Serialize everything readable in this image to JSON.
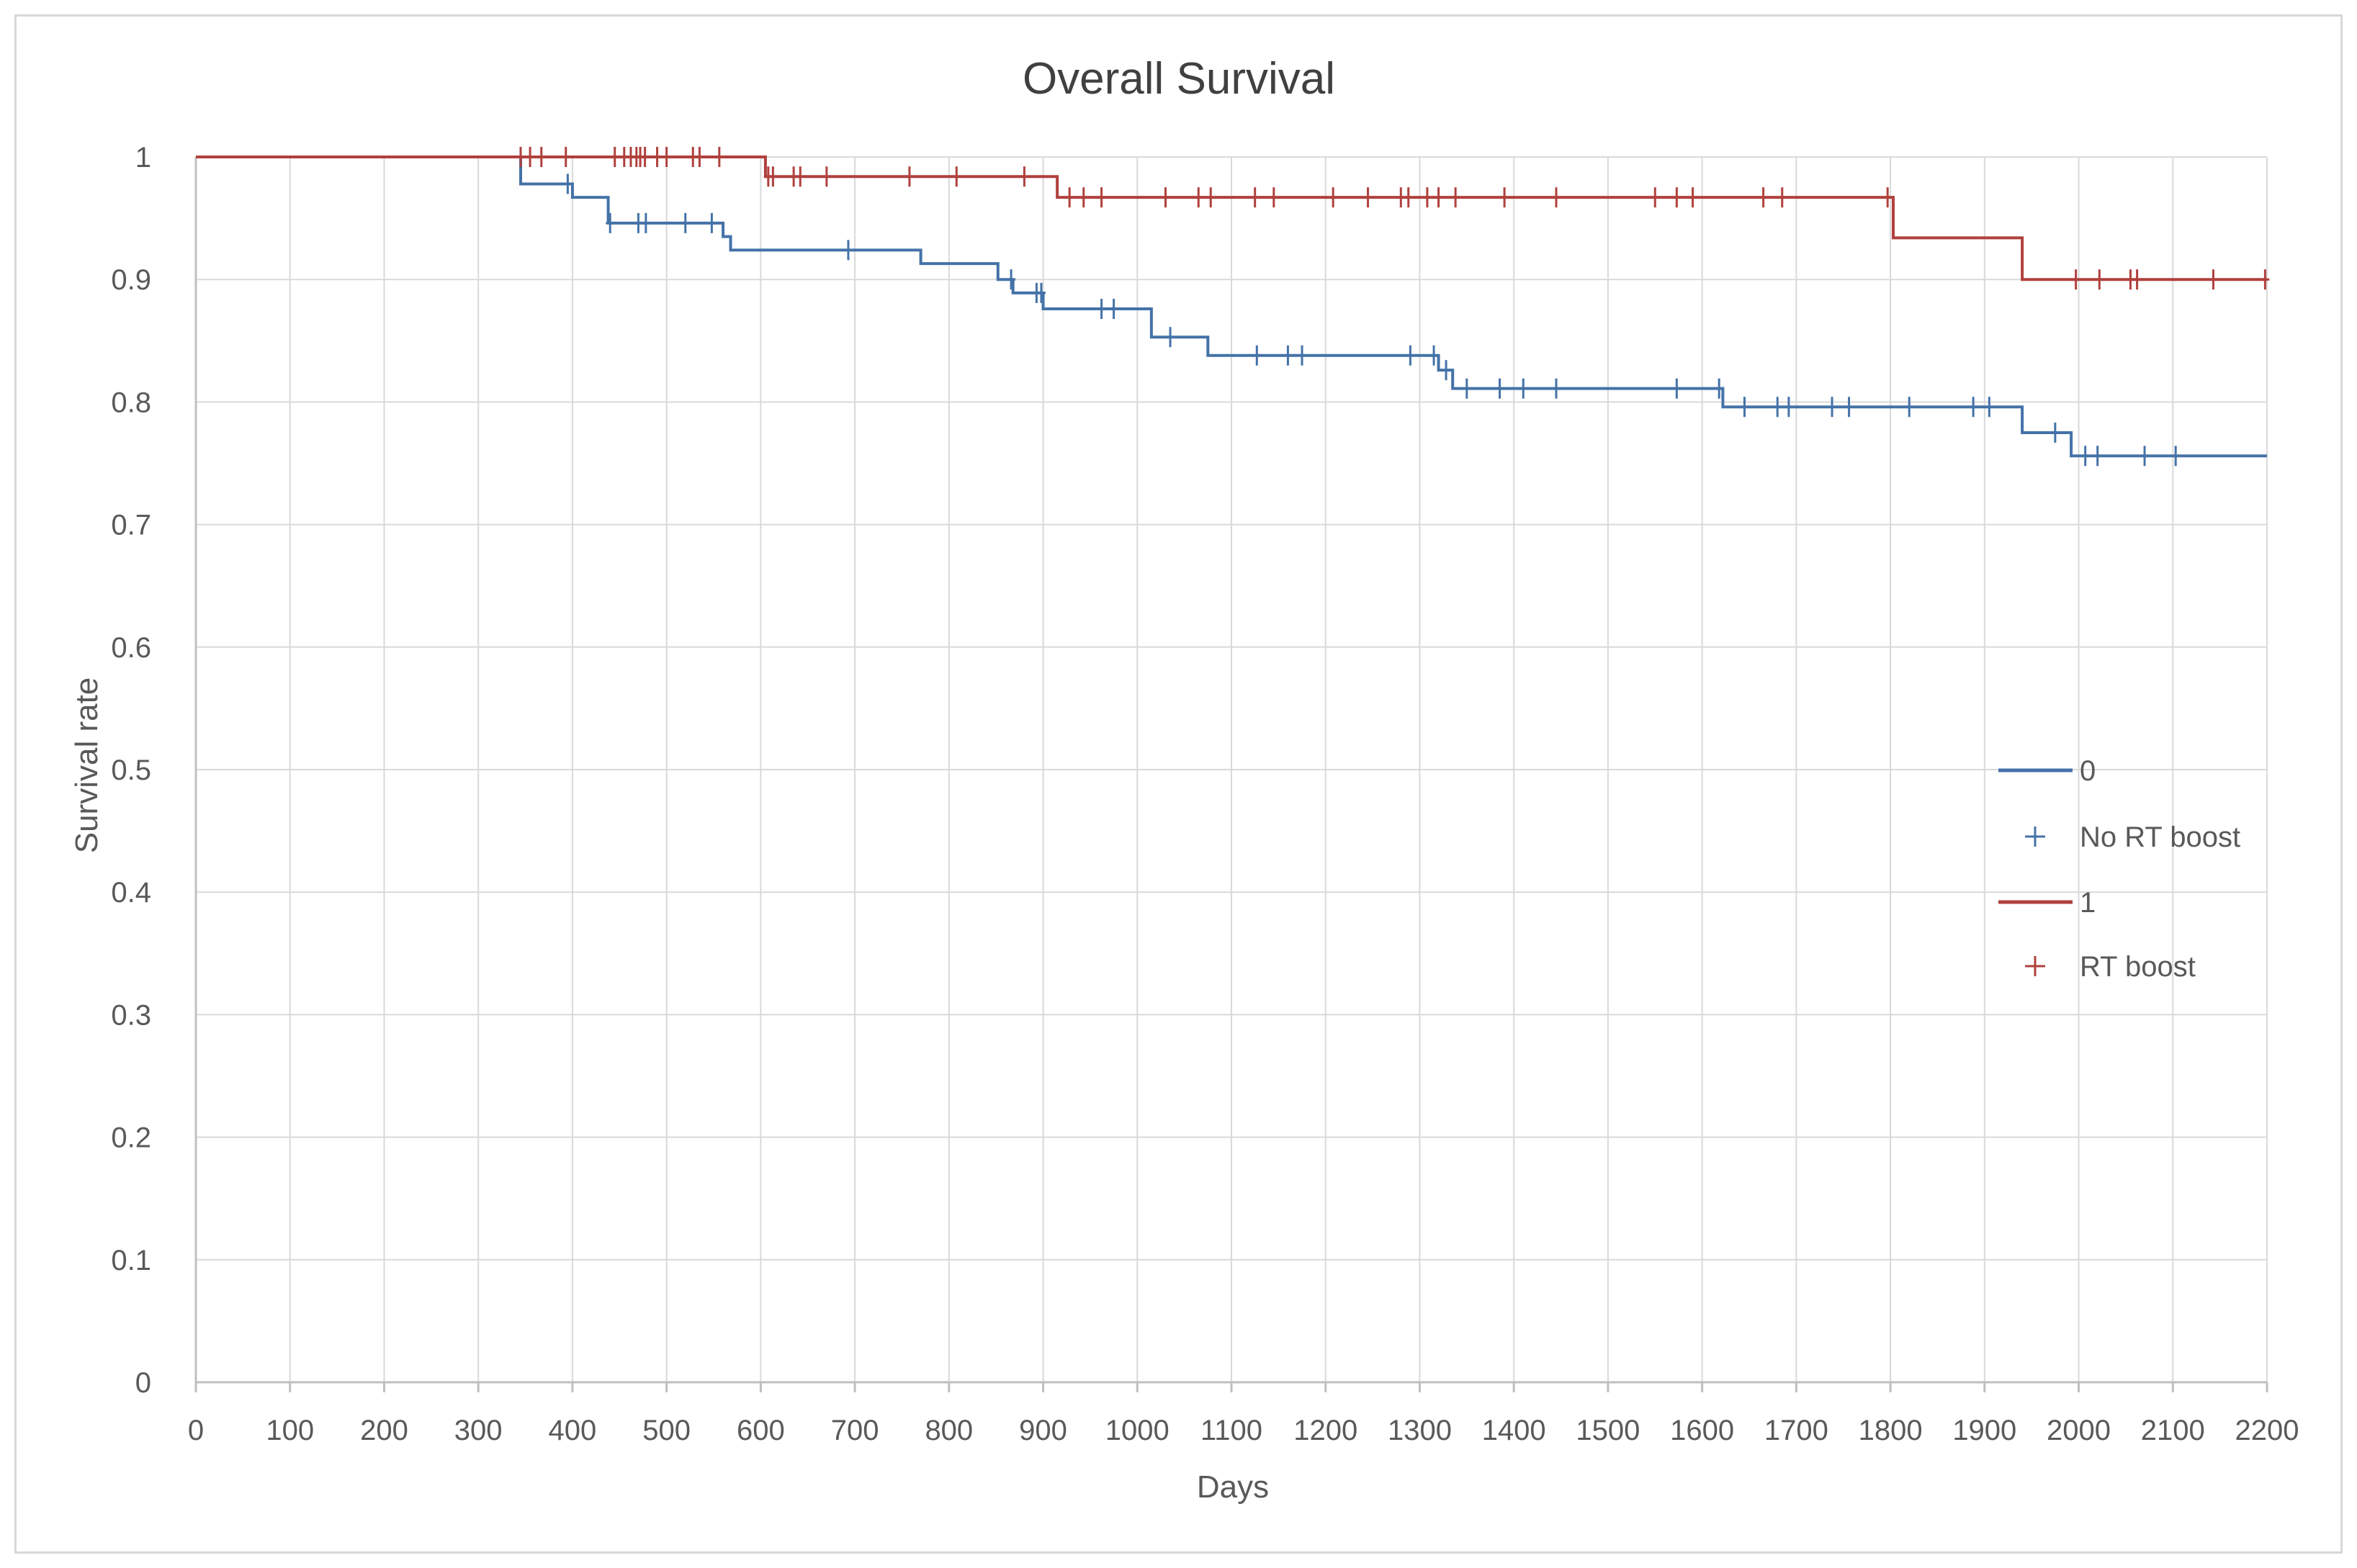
{
  "chart_data": {
    "type": "line",
    "subtype": "kaplan-meier-step",
    "title": "Overall Survival",
    "xlabel": "Days",
    "ylabel": "Survival rate",
    "xlim": [
      0,
      2200
    ],
    "ylim": [
      0,
      1
    ],
    "x_ticks": [
      0,
      100,
      200,
      300,
      400,
      500,
      600,
      700,
      800,
      900,
      1000,
      1100,
      1200,
      1300,
      1400,
      1500,
      1600,
      1700,
      1800,
      1900,
      2000,
      2100,
      2200
    ],
    "y_ticks": [
      0,
      0.1,
      0.2,
      0.3,
      0.4,
      0.5,
      0.6,
      0.7,
      0.8,
      0.9,
      1
    ],
    "y_tick_labels": [
      "0",
      "0.1",
      "0.2",
      "0.3",
      "0.4",
      "0.5",
      "0.6",
      "0.7",
      "0.8",
      "0.9",
      "1"
    ],
    "grid": true,
    "legend_position": "right",
    "series": [
      {
        "name": "0",
        "censor_label": "No RT boost",
        "color": "#4472a8",
        "steps": [
          [
            0,
            1
          ],
          [
            345,
            0.978
          ],
          [
            400,
            0.967
          ],
          [
            438,
            0.946
          ],
          [
            560,
            0.935
          ],
          [
            568,
            0.924
          ],
          [
            770,
            0.913
          ],
          [
            852,
            0.9
          ],
          [
            868,
            0.889
          ],
          [
            900,
            0.876
          ],
          [
            1015,
            0.853
          ],
          [
            1075,
            0.838
          ],
          [
            1320,
            0.826
          ],
          [
            1335,
            0.811
          ],
          [
            1622,
            0.796
          ],
          [
            1940,
            0.775
          ],
          [
            1992,
            0.756
          ],
          [
            2200,
            0.756
          ]
        ],
        "censored": [
          [
            395,
            0.978
          ],
          [
            440,
            0.946
          ],
          [
            470,
            0.946
          ],
          [
            478,
            0.946
          ],
          [
            520,
            0.946
          ],
          [
            548,
            0.946
          ],
          [
            693,
            0.924
          ],
          [
            866,
            0.9
          ],
          [
            893,
            0.889
          ],
          [
            898,
            0.889
          ],
          [
            962,
            0.876
          ],
          [
            975,
            0.876
          ],
          [
            1035,
            0.853
          ],
          [
            1127,
            0.838
          ],
          [
            1160,
            0.838
          ],
          [
            1175,
            0.838
          ],
          [
            1290,
            0.838
          ],
          [
            1315,
            0.838
          ],
          [
            1328,
            0.826
          ],
          [
            1350,
            0.811
          ],
          [
            1385,
            0.811
          ],
          [
            1410,
            0.811
          ],
          [
            1445,
            0.811
          ],
          [
            1573,
            0.811
          ],
          [
            1618,
            0.811
          ],
          [
            1645,
            0.796
          ],
          [
            1680,
            0.796
          ],
          [
            1692,
            0.796
          ],
          [
            1738,
            0.796
          ],
          [
            1756,
            0.796
          ],
          [
            1820,
            0.796
          ],
          [
            1888,
            0.796
          ],
          [
            1905,
            0.796
          ],
          [
            1975,
            0.775
          ],
          [
            2007,
            0.756
          ],
          [
            2020,
            0.756
          ],
          [
            2070,
            0.756
          ],
          [
            2103,
            0.756
          ]
        ]
      },
      {
        "name": "1",
        "censor_label": "RT boost",
        "color": "#b0403c",
        "steps": [
          [
            0,
            1
          ],
          [
            605,
            0.984
          ],
          [
            915,
            0.967
          ],
          [
            1803,
            0.934
          ],
          [
            1940,
            0.9
          ],
          [
            2200,
            0.9
          ]
        ],
        "censored": [
          [
            345,
            1
          ],
          [
            355,
            1
          ],
          [
            367,
            1
          ],
          [
            393,
            1
          ],
          [
            445,
            1
          ],
          [
            455,
            1
          ],
          [
            462,
            1
          ],
          [
            468,
            1
          ],
          [
            472,
            1
          ],
          [
            477,
            1
          ],
          [
            490,
            1
          ],
          [
            500,
            1
          ],
          [
            528,
            1
          ],
          [
            535,
            1
          ],
          [
            556,
            1
          ],
          [
            608,
            0.984
          ],
          [
            613,
            0.984
          ],
          [
            635,
            0.984
          ],
          [
            642,
            0.984
          ],
          [
            670,
            0.984
          ],
          [
            758,
            0.984
          ],
          [
            808,
            0.984
          ],
          [
            880,
            0.984
          ],
          [
            928,
            0.967
          ],
          [
            943,
            0.967
          ],
          [
            962,
            0.967
          ],
          [
            1030,
            0.967
          ],
          [
            1065,
            0.967
          ],
          [
            1078,
            0.967
          ],
          [
            1125,
            0.967
          ],
          [
            1145,
            0.967
          ],
          [
            1208,
            0.967
          ],
          [
            1245,
            0.967
          ],
          [
            1280,
            0.967
          ],
          [
            1288,
            0.967
          ],
          [
            1308,
            0.967
          ],
          [
            1320,
            0.967
          ],
          [
            1338,
            0.967
          ],
          [
            1390,
            0.967
          ],
          [
            1445,
            0.967
          ],
          [
            1550,
            0.967
          ],
          [
            1573,
            0.967
          ],
          [
            1590,
            0.967
          ],
          [
            1665,
            0.967
          ],
          [
            1685,
            0.967
          ],
          [
            1797,
            0.967
          ],
          [
            1997,
            0.9
          ],
          [
            2022,
            0.9
          ],
          [
            2055,
            0.9
          ],
          [
            2062,
            0.9
          ],
          [
            2143,
            0.9
          ],
          [
            2198,
            0.9
          ]
        ]
      }
    ]
  }
}
